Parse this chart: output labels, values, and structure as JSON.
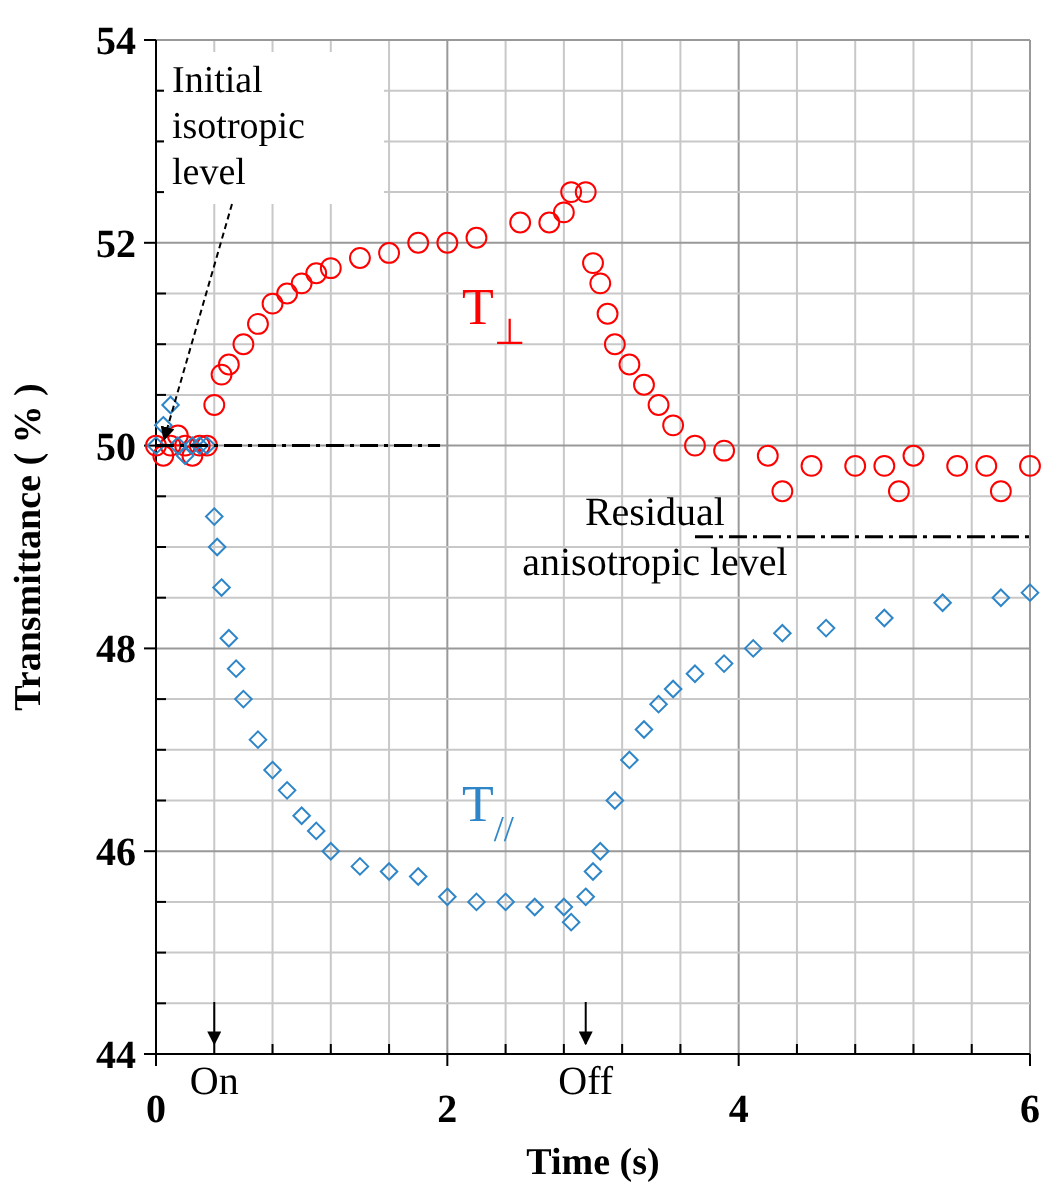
{
  "chart_data": {
    "type": "scatter",
    "xlabel": "Time (s)",
    "ylabel": "Transmittance ( % )",
    "xlim": [
      0,
      6
    ],
    "xticks": [
      0,
      2,
      4,
      6
    ],
    "ylim": [
      44,
      54
    ],
    "yticks": [
      44,
      46,
      48,
      50,
      52,
      54
    ],
    "grid": true,
    "series": [
      {
        "name": "T$_{⊥}$",
        "color": "#ff0000",
        "marker": "circle",
        "x": [
          0,
          0.05,
          0.1,
          0.15,
          0.2,
          0.25,
          0.3,
          0.35,
          0.4,
          0.45,
          0.5,
          0.6,
          0.7,
          0.8,
          0.9,
          1.0,
          1.1,
          1.2,
          1.4,
          1.6,
          1.8,
          2.0,
          2.2,
          2.5,
          2.7,
          2.8,
          2.85,
          2.95,
          3.0,
          3.05,
          3.1,
          3.15,
          3.25,
          3.35,
          3.45,
          3.55,
          3.7,
          3.9,
          4.2,
          4.5,
          4.8,
          5.0,
          5.2,
          5.5,
          5.7,
          6.0,
          4.3,
          5.1,
          5.8
        ],
        "values": [
          50,
          49.9,
          50,
          50.1,
          50,
          49.9,
          50,
          50,
          50.4,
          50.7,
          50.8,
          51.0,
          51.2,
          51.4,
          51.5,
          51.6,
          51.7,
          51.75,
          51.85,
          51.9,
          52.0,
          52.0,
          52.05,
          52.2,
          52.2,
          52.3,
          52.5,
          52.5,
          51.8,
          51.6,
          51.3,
          51.0,
          50.8,
          50.6,
          50.4,
          50.2,
          50.0,
          49.95,
          49.9,
          49.8,
          49.8,
          49.8,
          49.9,
          49.8,
          49.8,
          49.8,
          49.55,
          49.55,
          49.55
        ]
      },
      {
        "name": "T$_{//}$",
        "color": "#2e86c8",
        "marker": "diamond",
        "x": [
          0,
          0.05,
          0.1,
          0.15,
          0.2,
          0.25,
          0.3,
          0.35,
          0.4,
          0.42,
          0.45,
          0.5,
          0.55,
          0.6,
          0.7,
          0.8,
          0.9,
          1.0,
          1.1,
          1.2,
          1.4,
          1.6,
          1.8,
          2.0,
          2.2,
          2.4,
          2.6,
          2.8,
          2.85,
          2.95,
          3.0,
          3.05,
          3.15,
          3.25,
          3.35,
          3.45,
          3.55,
          3.7,
          3.9,
          4.1,
          4.3,
          4.6,
          5.0,
          5.4,
          5.8,
          6.0
        ],
        "values": [
          50,
          50.2,
          50.4,
          50,
          49.9,
          50,
          50,
          50,
          49.3,
          49.0,
          48.6,
          48.1,
          47.8,
          47.5,
          47.1,
          46.8,
          46.6,
          46.35,
          46.2,
          46.0,
          45.85,
          45.8,
          45.75,
          45.55,
          45.5,
          45.5,
          45.45,
          45.45,
          45.3,
          45.55,
          45.8,
          46.0,
          46.5,
          46.9,
          47.2,
          47.45,
          47.6,
          47.75,
          47.85,
          48.0,
          48.15,
          48.2,
          48.3,
          48.45,
          48.5,
          48.55
        ]
      },
      {
        "type": "line",
        "color": "#000000",
        "line_style": "dashed",
        "marker": "none",
        "x": [
          0,
          1.95
        ],
        "values": [
          50,
          50
        ]
      },
      {
        "type": "line",
        "color": "#000000",
        "line_style": "dashed",
        "marker": "none",
        "x": [
          3.7,
          6
        ],
        "values": [
          49.1,
          49.1
        ]
      }
    ],
    "annotations": [
      {
        "text": "Initial isotropic level",
        "x": 0,
        "y": 50
      },
      {
        "text": "Residual anisotropic level",
        "x": 3.7,
        "y": 49.1
      },
      "On",
      "Off"
    ]
  }
}
